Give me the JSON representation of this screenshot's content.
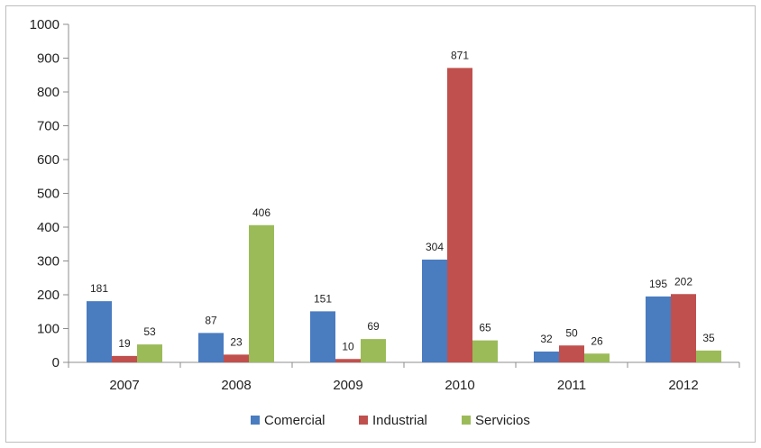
{
  "chart_data": {
    "type": "bar",
    "categories": [
      "2007",
      "2008",
      "2009",
      "2010",
      "2011",
      "2012"
    ],
    "series": [
      {
        "name": "Comercial",
        "values": [
          181,
          87,
          151,
          304,
          32,
          195
        ],
        "color": "#4a7cc0"
      },
      {
        "name": "Industrial",
        "values": [
          19,
          23,
          10,
          871,
          50,
          202
        ],
        "color": "#c0504d"
      },
      {
        "name": "Servicios",
        "values": [
          53,
          406,
          69,
          65,
          26,
          35
        ],
        "color": "#9bbb59"
      }
    ],
    "ylim": [
      0,
      1000
    ],
    "yticks": [
      "0",
      "100",
      "200",
      "300",
      "400",
      "500",
      "600",
      "700",
      "800",
      "900",
      "1000"
    ],
    "grid": false,
    "legend": "bottom"
  }
}
